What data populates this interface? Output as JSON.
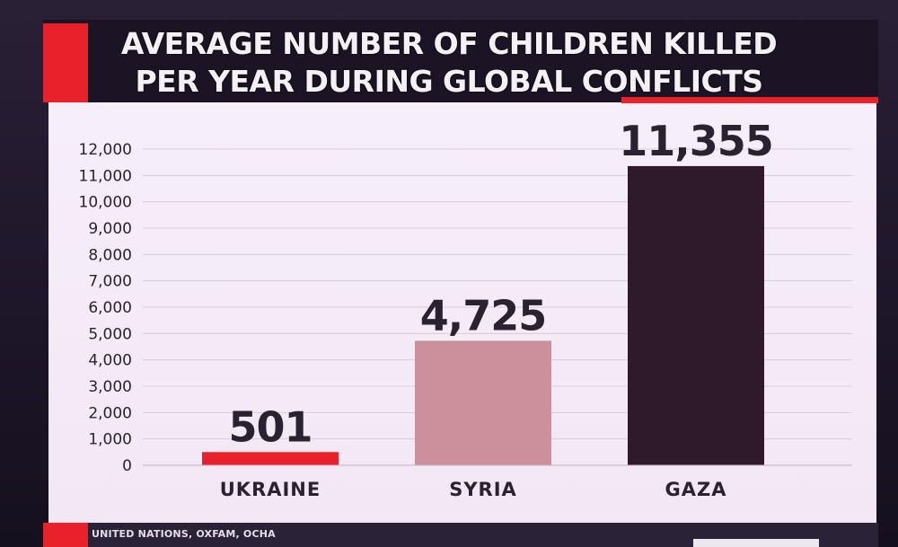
{
  "title_line1": "AVERAGE NUMBER OF CHILDREN KILLED",
  "title_line2": "PER YEAR DURING GLOBAL CONFLICTS",
  "source": "UNITED NATIONS, OXFAM, OCHA",
  "colors": {
    "accent_red": "#e8212a",
    "ukraine_bar": "#e8212a",
    "syria_bar": "#cc909c",
    "gaza_bar": "#2e1a2a",
    "panel_bg": "#f4ecf6"
  },
  "chart_data": {
    "type": "bar",
    "title": "AVERAGE NUMBER OF CHILDREN KILLED PER YEAR DURING GLOBAL CONFLICTS",
    "categories": [
      "UKRAINE",
      "SYRIA",
      "GAZA"
    ],
    "values": [
      501,
      4725,
      11355
    ],
    "value_labels": [
      "501",
      "4,725",
      "11,355"
    ],
    "bar_colors": [
      "#e8212a",
      "#cc909c",
      "#2e1a2a"
    ],
    "ylim": [
      0,
      12000
    ],
    "yticks": [
      0,
      1000,
      2000,
      3000,
      4000,
      5000,
      6000,
      7000,
      8000,
      9000,
      10000,
      11000,
      12000
    ],
    "ytick_labels": [
      "0",
      "1,000",
      "2,000",
      "3,000",
      "4,000",
      "5,000",
      "6,000",
      "7,000",
      "8,000",
      "9,000",
      "10,000",
      "11,000",
      "12,000"
    ],
    "grid": true,
    "xlabel": "",
    "ylabel": ""
  }
}
